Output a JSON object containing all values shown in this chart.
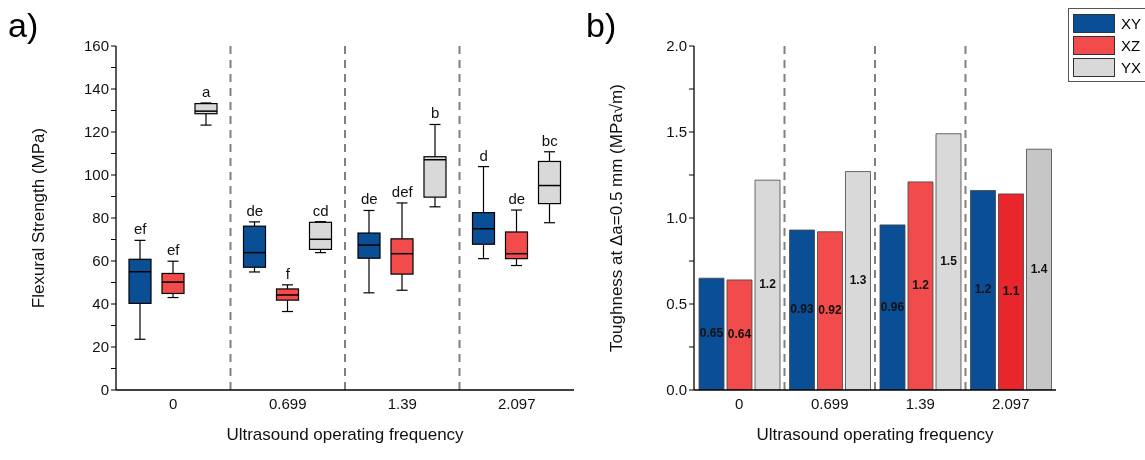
{
  "chart_data": [
    {
      "type": "box",
      "title": "a)",
      "xlabel": "Ultrasound operating frequency",
      "ylabel": "Flexural Strength (MPa)",
      "categories": [
        "0",
        "0.699",
        "1.39",
        "2.097"
      ],
      "ylim": [
        0,
        160
      ],
      "yticks": [
        0,
        {
          "value": 10,
          "label": null
        },
        20,
        {
          "value": 30,
          "label": null
        },
        40,
        {
          "value": 50,
          "label": null
        },
        60,
        {
          "value": 70,
          "label": null
        },
        80,
        {
          "value": 90,
          "label": null
        },
        100,
        {
          "value": 110,
          "label": null
        },
        120,
        {
          "value": 130,
          "label": null
        },
        140,
        {
          "value": 150,
          "label": null
        },
        160
      ],
      "series": [
        {
          "color": "#0a4f96",
          "boxes": [
            {
              "low": 23.6,
              "q1": 40.3,
              "median": 55,
              "q3": 60.8,
              "high": 69.6
            },
            {
              "low": 54.9,
              "q1": 57.1,
              "median": 63.9,
              "q3": 76.2,
              "high": 78.2
            },
            {
              "low": 45.2,
              "q1": 61.3,
              "median": 67.4,
              "q3": 73,
              "high": 83.5
            },
            {
              "low": 61.1,
              "q1": 67.8,
              "median": 75,
              "q3": 82.5,
              "high": 103.9
            }
          ]
        },
        {
          "color": "#f24b4b",
          "boxes": [
            {
              "low": 43,
              "q1": 44.9,
              "median": 50.2,
              "q3": 54.2,
              "high": 59.9
            },
            {
              "low": 36.5,
              "q1": 41.8,
              "median": 44.2,
              "q3": 47,
              "high": 48.9
            },
            {
              "low": 46.4,
              "q1": 53.9,
              "median": 63.4,
              "q3": 70.3,
              "high": 87
            },
            {
              "low": 57.9,
              "q1": 61.1,
              "median": 63.4,
              "q3": 73.5,
              "high": 83.7
            }
          ]
        },
        {
          "color": "#d9d9d9",
          "boxes": [
            {
              "low": 123.2,
              "q1": 128.5,
              "median": 129.7,
              "q3": 133.2,
              "high": 133.5
            },
            {
              "low": 63.9,
              "q1": 65.4,
              "median": 70.1,
              "q3": 78,
              "high": 78.3
            },
            {
              "low": 85.2,
              "q1": 89.7,
              "median": 107.1,
              "q3": 108.5,
              "high": 123.5
            },
            {
              "low": 77.8,
              "q1": 86.7,
              "median": 95.1,
              "q3": 106.3,
              "high": 110.8
            }
          ]
        }
      ],
      "annotations": [
        "ef",
        "de",
        "de",
        "d",
        "ef",
        "f",
        "def",
        "de",
        "a",
        "cd",
        "b",
        "bc"
      ]
    },
    {
      "type": "bar",
      "title": "b)",
      "xlabel": "Ultrasound operating frequency",
      "ylabel": "Toughness at Δa=0.5 mm (MPa√m)",
      "categories": [
        "0",
        "0.699",
        "1.39",
        "2.097"
      ],
      "ylim": [
        0,
        2
      ],
      "yticks": [
        {
          "value": 0,
          "label": "0.0"
        },
        {
          "value": 0.25,
          "label": null
        },
        0.5,
        {
          "value": 0.75,
          "label": null
        },
        {
          "value": 1,
          "label": "1.0"
        },
        {
          "value": 1.25,
          "label": null
        },
        1.5,
        {
          "value": 1.75,
          "label": null
        },
        {
          "value": 2,
          "label": "2.0"
        }
      ],
      "legend": "top right",
      "series": [
        {
          "name": "XY",
          "color": "#0a4f96",
          "values": [
            0.65,
            0.93,
            0.96,
            1.16
          ],
          "value_labels": [
            "0.65",
            "0.93",
            "0.96",
            "1.2"
          ]
        },
        {
          "name": "XZ",
          "color": "#f24b4b",
          "colors": [
            "#f24b4b",
            "#f24b4b",
            "#f24b4b",
            "#e8262b"
          ],
          "values": [
            0.64,
            0.92,
            1.21,
            1.14
          ],
          "value_labels": [
            "0.64",
            "0.92",
            "1.2",
            "1.1"
          ]
        },
        {
          "name": "YX",
          "color": "#d9d9d9",
          "colors": [
            "#d9d9d9",
            "#d9d9d9",
            "#d9d9d9",
            "#c6c6c6"
          ],
          "values": [
            1.22,
            1.27,
            1.49,
            1.4
          ],
          "value_labels": [
            "1.2",
            "1.3",
            "1.5",
            "1.4"
          ]
        }
      ]
    }
  ]
}
